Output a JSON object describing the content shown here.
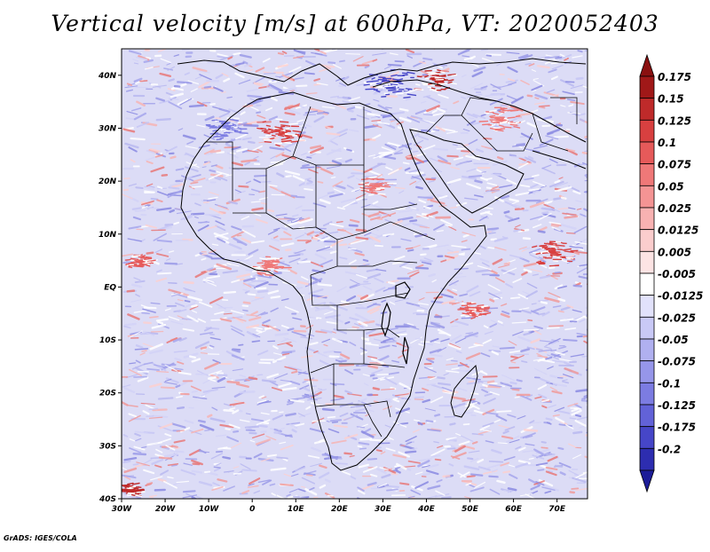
{
  "title": "Vertical velocity [m/s] at 600hPa, VT: 2020052403",
  "credit": "GrADS: IGES/COLA",
  "map": {
    "lon_range": [
      -30,
      77
    ],
    "lat_range": [
      -40,
      45
    ],
    "lon_ticks": [
      {
        "value": -30,
        "label": "30W"
      },
      {
        "value": -20,
        "label": "20W"
      },
      {
        "value": -10,
        "label": "10W"
      },
      {
        "value": 0,
        "label": "0"
      },
      {
        "value": 10,
        "label": "10E"
      },
      {
        "value": 20,
        "label": "20E"
      },
      {
        "value": 30,
        "label": "30E"
      },
      {
        "value": 40,
        "label": "40E"
      },
      {
        "value": 50,
        "label": "50E"
      },
      {
        "value": 60,
        "label": "60E"
      },
      {
        "value": 70,
        "label": "70E"
      }
    ],
    "lat_ticks": [
      {
        "value": 40,
        "label": "40N"
      },
      {
        "value": 30,
        "label": "30N"
      },
      {
        "value": 20,
        "label": "20N"
      },
      {
        "value": 10,
        "label": "10N"
      },
      {
        "value": 0,
        "label": "EQ"
      },
      {
        "value": -10,
        "label": "10S"
      },
      {
        "value": -20,
        "label": "20S"
      },
      {
        "value": -30,
        "label": "30S"
      },
      {
        "value": -40,
        "label": "40S"
      }
    ]
  },
  "colorbar": {
    "levels": [
      {
        "label": "0.175",
        "color": "#a01818"
      },
      {
        "label": "0.15",
        "color": "#bf2a2a"
      },
      {
        "label": "0.125",
        "color": "#d84040"
      },
      {
        "label": "0.1",
        "color": "#e65a5a"
      },
      {
        "label": "0.075",
        "color": "#ef7878"
      },
      {
        "label": "0.05",
        "color": "#f49494"
      },
      {
        "label": "0.025",
        "color": "#f8b2b2"
      },
      {
        "label": "0.0125",
        "color": "#fbcdcd"
      },
      {
        "label": "0.005",
        "color": "#fde4e4"
      },
      {
        "label": "-0.005",
        "color": "#ffffff"
      },
      {
        "label": "-0.0125",
        "color": "#e2e2fb"
      },
      {
        "label": "-0.025",
        "color": "#c9c9f6"
      },
      {
        "label": "-0.05",
        "color": "#b0b0f0"
      },
      {
        "label": "-0.075",
        "color": "#9696ea"
      },
      {
        "label": "-0.1",
        "color": "#7c7ce2"
      },
      {
        "label": "-0.125",
        "color": "#6262d8"
      },
      {
        "label": "-0.175",
        "color": "#4646c8"
      },
      {
        "label": "-0.2",
        "color": "#2d2db0"
      }
    ],
    "top_cap_color": "#8a1010",
    "bottom_cap_color": "#1c1c98"
  },
  "colors": {
    "ocean_base": "#d9d9f5",
    "land_base": "#cfcff3",
    "boundary": "#000000"
  }
}
